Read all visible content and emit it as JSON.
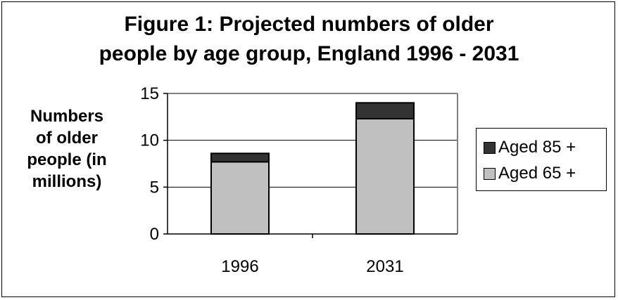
{
  "chart_data": {
    "type": "bar",
    "stacked": true,
    "title_lines": [
      "Figure 1: Projected numbers of older",
      "people by age group, England 1996 - 2031"
    ],
    "ylabel_lines": [
      "Numbers",
      "of older",
      "people (in",
      "millions)"
    ],
    "categories": [
      "1996",
      "2031"
    ],
    "yticks": [
      "0",
      "5",
      "10",
      "15"
    ],
    "ylim": [
      0,
      15
    ],
    "grid": true,
    "legend_position": "right",
    "series": [
      {
        "name": "Aged 65 +",
        "values": [
          7.7,
          12.3
        ],
        "color": "#c0c0c0"
      },
      {
        "name": "Aged 85 +",
        "values": [
          0.9,
          1.7
        ],
        "color": "#333333"
      }
    ],
    "legend_order": [
      1,
      0
    ]
  }
}
